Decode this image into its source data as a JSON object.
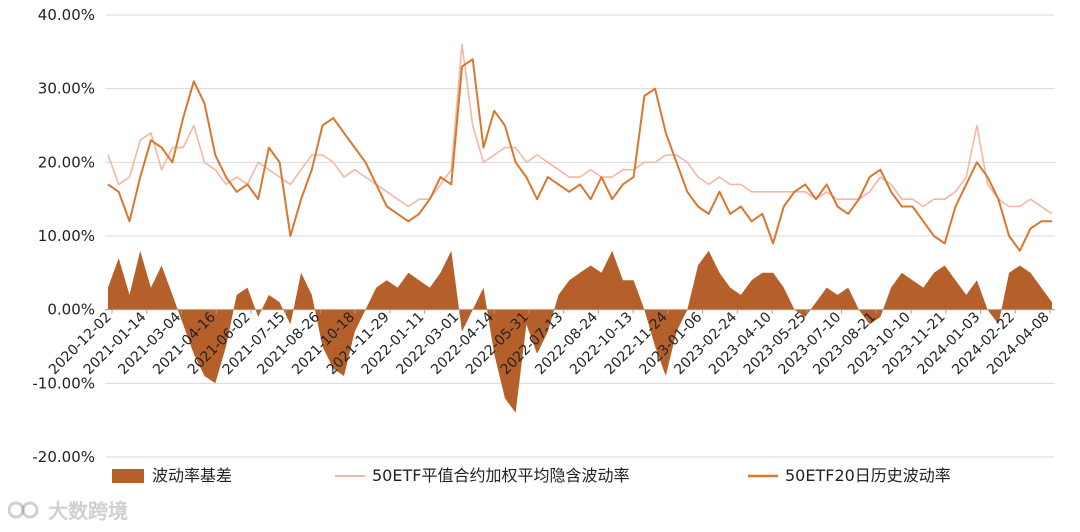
{
  "chart_data": {
    "type": "line",
    "title": "",
    "xlabel": "",
    "ylabel": "",
    "ylim": [
      -0.2,
      0.4
    ],
    "yticks": [
      "-20.00%",
      "-10.00%",
      "0.00%",
      "10.00%",
      "20.00%",
      "30.00%",
      "40.00%"
    ],
    "x_tick_labels": [
      "2020-12-02",
      "2021-01-14",
      "2021-03-04",
      "2021-04-16",
      "2021-06-02",
      "2021-07-15",
      "2021-08-26",
      "2021-10-18",
      "2021-11-29",
      "2022-01-11",
      "2022-03-01",
      "2022-04-14",
      "2022-05-31",
      "2022-07-13",
      "2022-08-24",
      "2022-10-13",
      "2022-11-24",
      "2023-01-06",
      "2023-02-24",
      "2023-04-10",
      "2023-05-25",
      "2023-07-10",
      "2023-08-21",
      "2023-10-10",
      "2023-11-21",
      "2024-01-03",
      "2024-02-22",
      "2024-04-08"
    ],
    "grid": true,
    "legend": "bottom",
    "colors": {
      "basis": "#b5602a",
      "implied": "#f4b7a5",
      "historical": "#d9772f"
    },
    "series": [
      {
        "name": "波动率基差",
        "kind": "area",
        "values": [
          0.03,
          0.07,
          0.02,
          0.08,
          0.03,
          0.06,
          0.02,
          -0.02,
          -0.06,
          -0.09,
          -0.1,
          -0.05,
          0.02,
          0.03,
          -0.01,
          0.02,
          0.01,
          -0.02,
          0.05,
          0.02,
          -0.05,
          -0.08,
          -0.09,
          -0.03,
          0.0,
          0.03,
          0.04,
          0.03,
          0.05,
          0.04,
          0.03,
          0.05,
          0.08,
          -0.03,
          0.0,
          0.03,
          -0.06,
          -0.12,
          -0.14,
          -0.02,
          -0.06,
          -0.03,
          0.02,
          0.04,
          0.05,
          0.06,
          0.05,
          0.08,
          0.04,
          0.04,
          0.0,
          -0.05,
          -0.09,
          -0.03,
          0.0,
          0.06,
          0.08,
          0.05,
          0.03,
          0.02,
          0.04,
          0.05,
          0.05,
          0.03,
          0.0,
          -0.01,
          0.01,
          0.03,
          0.02,
          0.03,
          0.0,
          -0.02,
          -0.01,
          0.03,
          0.05,
          0.04,
          0.03,
          0.05,
          0.06,
          0.04,
          0.02,
          0.04,
          0.0,
          -0.02,
          0.05,
          0.06,
          0.05,
          0.03,
          0.01
        ]
      },
      {
        "name": "50ETF平值合约加权平均隐含波动率",
        "kind": "line",
        "values": [
          0.21,
          0.17,
          0.18,
          0.23,
          0.24,
          0.19,
          0.22,
          0.22,
          0.25,
          0.2,
          0.19,
          0.17,
          0.18,
          0.17,
          0.2,
          0.19,
          0.18,
          0.17,
          0.19,
          0.21,
          0.21,
          0.2,
          0.18,
          0.19,
          0.18,
          0.17,
          0.16,
          0.15,
          0.14,
          0.15,
          0.15,
          0.17,
          0.19,
          0.36,
          0.25,
          0.2,
          0.21,
          0.22,
          0.22,
          0.2,
          0.21,
          0.2,
          0.19,
          0.18,
          0.18,
          0.19,
          0.18,
          0.18,
          0.19,
          0.19,
          0.2,
          0.2,
          0.21,
          0.21,
          0.2,
          0.18,
          0.17,
          0.18,
          0.17,
          0.17,
          0.16,
          0.16,
          0.16,
          0.16,
          0.16,
          0.16,
          0.15,
          0.16,
          0.15,
          0.15,
          0.15,
          0.16,
          0.18,
          0.17,
          0.15,
          0.15,
          0.14,
          0.15,
          0.15,
          0.16,
          0.18,
          0.25,
          0.17,
          0.15,
          0.14,
          0.14,
          0.15,
          0.14,
          0.13
        ]
      },
      {
        "name": "50ETF20日历史波动率",
        "kind": "line",
        "values": [
          0.17,
          0.16,
          0.12,
          0.18,
          0.23,
          0.22,
          0.2,
          0.26,
          0.31,
          0.28,
          0.21,
          0.18,
          0.16,
          0.17,
          0.15,
          0.22,
          0.2,
          0.1,
          0.15,
          0.19,
          0.25,
          0.26,
          0.24,
          0.22,
          0.2,
          0.17,
          0.14,
          0.13,
          0.12,
          0.13,
          0.15,
          0.18,
          0.17,
          0.33,
          0.34,
          0.22,
          0.27,
          0.25,
          0.2,
          0.18,
          0.15,
          0.18,
          0.17,
          0.16,
          0.17,
          0.15,
          0.18,
          0.15,
          0.17,
          0.18,
          0.29,
          0.3,
          0.24,
          0.2,
          0.16,
          0.14,
          0.13,
          0.16,
          0.13,
          0.14,
          0.12,
          0.13,
          0.09,
          0.14,
          0.16,
          0.17,
          0.15,
          0.17,
          0.14,
          0.13,
          0.15,
          0.18,
          0.19,
          0.16,
          0.14,
          0.14,
          0.12,
          0.1,
          0.09,
          0.14,
          0.17,
          0.2,
          0.18,
          0.15,
          0.1,
          0.08,
          0.11,
          0.12,
          0.12
        ]
      }
    ]
  },
  "watermark": {
    "text": "大数跨境"
  }
}
